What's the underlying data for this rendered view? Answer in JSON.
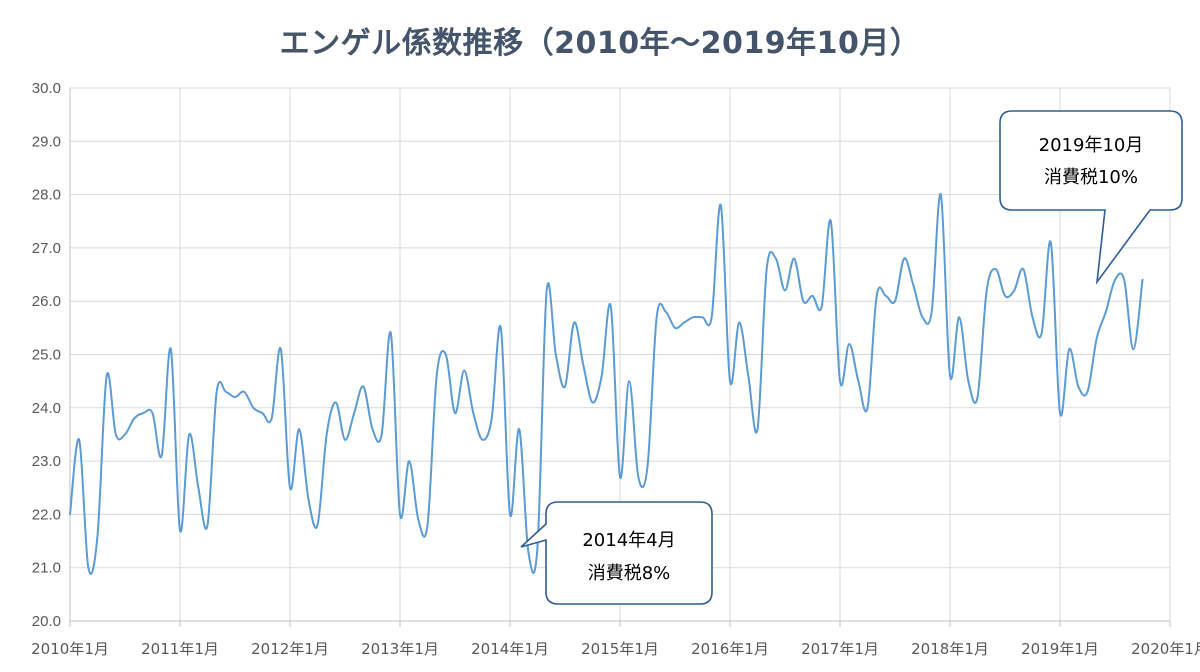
{
  "chart_data": {
    "type": "line",
    "title": "エンゲル係数推移（2010年～2019年10月）",
    "xlabel": "",
    "ylabel": "",
    "ylim": [
      20.0,
      30.0
    ],
    "y_ticks": [
      "20.0",
      "21.0",
      "22.0",
      "23.0",
      "24.0",
      "25.0",
      "26.0",
      "27.0",
      "28.0",
      "29.0",
      "30.0"
    ],
    "x_tick_labels": [
      "2010年1月",
      "2011年1月",
      "2012年1月",
      "2013年1月",
      "2014年1月",
      "2015年1月",
      "2016年1月",
      "2017年1月",
      "2018年1月",
      "2019年1月",
      "2020年1月"
    ],
    "x_range_months": [
      0,
      120
    ],
    "grid": true,
    "line_color": "#5b9bd5",
    "series": [
      {
        "values": [
          22.0,
          23.4,
          21.0,
          21.6,
          24.6,
          23.5,
          23.5,
          23.8,
          23.9,
          23.9,
          23.1,
          25.1,
          21.7,
          23.5,
          22.5,
          21.8,
          24.3,
          24.3,
          24.2,
          24.3,
          24.0,
          23.9,
          23.8,
          25.1,
          22.5,
          23.6,
          22.3,
          21.8,
          23.5,
          24.1,
          23.4,
          23.9,
          24.4,
          23.6,
          23.5,
          25.4,
          22.0,
          23.0,
          21.9,
          21.8,
          24.6,
          25.0,
          23.9,
          24.7,
          23.9,
          23.4,
          23.8,
          25.5,
          22.0,
          23.6,
          21.3,
          21.4,
          26.2,
          25.0,
          24.4,
          25.6,
          24.8,
          24.1,
          24.6,
          25.9,
          22.7,
          24.5,
          22.7,
          22.9,
          25.7,
          25.8,
          25.5,
          25.6,
          25.7,
          25.7,
          25.7,
          27.8,
          24.5,
          25.6,
          24.6,
          23.6,
          26.6,
          26.8,
          26.2,
          26.8,
          26.0,
          26.1,
          25.9,
          27.5,
          24.5,
          25.2,
          24.5,
          24.0,
          26.1,
          26.1,
          26.0,
          26.8,
          26.3,
          25.7,
          25.8,
          28.0,
          24.6,
          25.7,
          24.5,
          24.2,
          26.2,
          26.6,
          26.1,
          26.2,
          26.6,
          25.7,
          25.4,
          27.1,
          23.9,
          25.1,
          24.4,
          24.3,
          25.3,
          25.8,
          26.4,
          26.4,
          25.1,
          26.4
        ]
      }
    ],
    "annotations": [
      {
        "lines": [
          "2014年4月",
          "消費税8%"
        ],
        "month": 51
      },
      {
        "lines": [
          "2019年10月",
          "消費税10%"
        ],
        "month": 117
      }
    ]
  }
}
